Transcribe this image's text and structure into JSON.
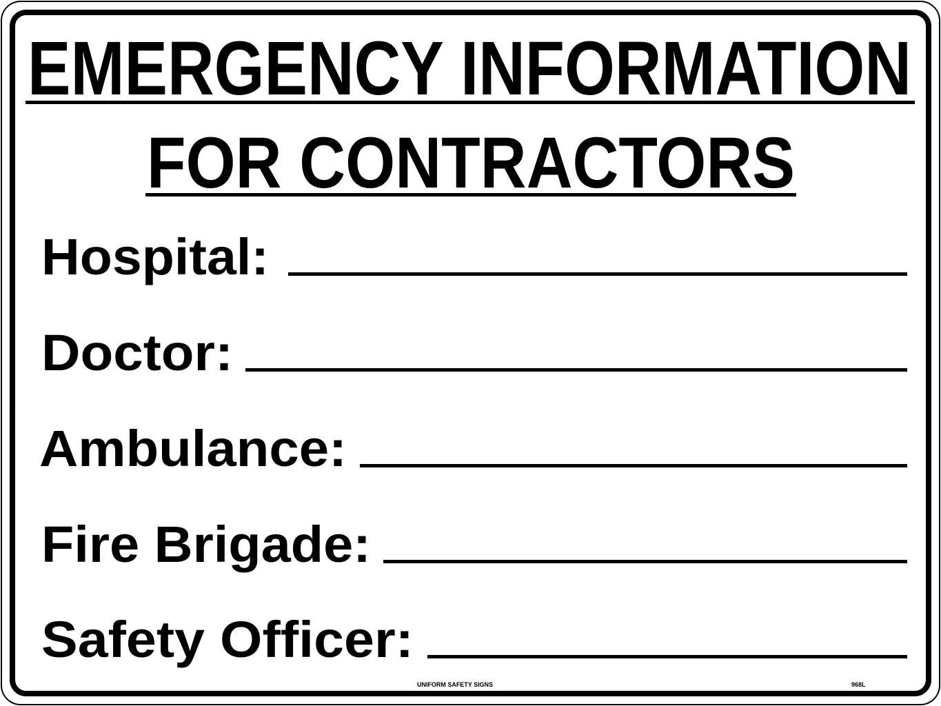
{
  "sign": {
    "title_line1": "EMERGENCY INFORMATION",
    "title_line2": "FOR CONTRACTORS",
    "fields": [
      {
        "label": "Hospital:",
        "value": ""
      },
      {
        "label": "Doctor:",
        "value": ""
      },
      {
        "label": "Ambulance:",
        "value": ""
      },
      {
        "label": "Fire Brigade:",
        "value": ""
      },
      {
        "label": "Safety Officer:",
        "value": ""
      }
    ],
    "footer_brand": "UNIFORM SAFETY SIGNS",
    "footer_code": "968L",
    "colors": {
      "foreground": "#000000",
      "background": "#ffffff"
    }
  }
}
